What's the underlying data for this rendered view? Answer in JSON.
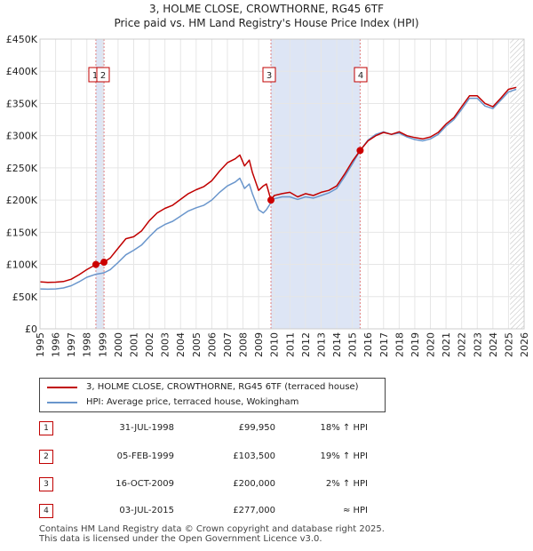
{
  "title_line1": "3, HOLME CLOSE, CROWTHORNE, RG45 6TF",
  "title_line2": "Price paid vs. HM Land Registry's House Price Index (HPI)",
  "colors": {
    "property_line": "#c00000",
    "hpi_line": "#6a96cc",
    "shade": "#dde5f5",
    "grid": "#e6e6e6",
    "marker": "#cc0000",
    "vline": "#e08080",
    "hatch": "#bbbbbb"
  },
  "chart_data": {
    "type": "line",
    "title": "3, HOLME CLOSE, CROWTHORNE, RG45 6TF",
    "subtitle": "Price paid vs. HM Land Registry's House Price Index (HPI)",
    "xlim": [
      1995,
      2026
    ],
    "ylim": [
      0,
      450000
    ],
    "x_ticks": [
      "1995",
      "1996",
      "1997",
      "1998",
      "1999",
      "2000",
      "2001",
      "2002",
      "2003",
      "2004",
      "2005",
      "2006",
      "2007",
      "2008",
      "2009",
      "2010",
      "2011",
      "2012",
      "2013",
      "2014",
      "2015",
      "2016",
      "2017",
      "2018",
      "2019",
      "2020",
      "2021",
      "2022",
      "2023",
      "2024",
      "2025",
      "2026"
    ],
    "y_ticks": [
      {
        "value": 0,
        "label": "£0"
      },
      {
        "value": 50000,
        "label": "£50K"
      },
      {
        "value": 100000,
        "label": "£100K"
      },
      {
        "value": 150000,
        "label": "£150K"
      },
      {
        "value": 200000,
        "label": "£200K"
      },
      {
        "value": 250000,
        "label": "£250K"
      },
      {
        "value": 300000,
        "label": "£300K"
      },
      {
        "value": 350000,
        "label": "£350K"
      },
      {
        "value": 400000,
        "label": "£400K"
      },
      {
        "value": 450000,
        "label": "£450K"
      }
    ],
    "grid": true,
    "shaded_ranges": [
      [
        1998.58,
        1999.1
      ],
      [
        2009.79,
        2015.5
      ]
    ],
    "forecast_from": 2025.1,
    "series": [
      {
        "name": "3, HOLME CLOSE, CROWTHORNE, RG45 6TF (terraced house)",
        "color": "#c00000",
        "points": [
          [
            1995.0,
            73000
          ],
          [
            1995.5,
            72000
          ],
          [
            1996.0,
            72500
          ],
          [
            1996.5,
            73500
          ],
          [
            1997.0,
            77000
          ],
          [
            1997.5,
            84000
          ],
          [
            1998.0,
            92000
          ],
          [
            1998.58,
            99950
          ],
          [
            1999.1,
            103500
          ],
          [
            1999.5,
            110000
          ],
          [
            2000.0,
            125000
          ],
          [
            2000.5,
            140000
          ],
          [
            2001.0,
            143000
          ],
          [
            2001.5,
            152000
          ],
          [
            2002.0,
            168000
          ],
          [
            2002.5,
            180000
          ],
          [
            2003.0,
            187000
          ],
          [
            2003.5,
            192000
          ],
          [
            2004.0,
            201000
          ],
          [
            2004.5,
            210000
          ],
          [
            2005.0,
            216000
          ],
          [
            2005.5,
            221000
          ],
          [
            2006.0,
            230000
          ],
          [
            2006.5,
            245000
          ],
          [
            2007.0,
            258000
          ],
          [
            2007.5,
            264000
          ],
          [
            2007.8,
            270000
          ],
          [
            2008.1,
            253000
          ],
          [
            2008.4,
            262000
          ],
          [
            2008.6,
            243000
          ],
          [
            2009.0,
            215000
          ],
          [
            2009.3,
            222000
          ],
          [
            2009.5,
            225000
          ],
          [
            2009.79,
            200000
          ],
          [
            2010.0,
            207000
          ],
          [
            2010.5,
            210000
          ],
          [
            2011.0,
            212000
          ],
          [
            2011.5,
            205000
          ],
          [
            2012.0,
            210000
          ],
          [
            2012.5,
            207000
          ],
          [
            2013.0,
            212000
          ],
          [
            2013.5,
            215000
          ],
          [
            2014.0,
            222000
          ],
          [
            2014.5,
            240000
          ],
          [
            2015.0,
            260000
          ],
          [
            2015.5,
            277000
          ],
          [
            2016.0,
            292000
          ],
          [
            2016.5,
            300000
          ],
          [
            2017.0,
            305000
          ],
          [
            2017.5,
            302000
          ],
          [
            2018.0,
            306000
          ],
          [
            2018.5,
            300000
          ],
          [
            2019.0,
            297000
          ],
          [
            2019.5,
            295000
          ],
          [
            2020.0,
            298000
          ],
          [
            2020.5,
            305000
          ],
          [
            2021.0,
            318000
          ],
          [
            2021.5,
            328000
          ],
          [
            2022.0,
            345000
          ],
          [
            2022.5,
            362000
          ],
          [
            2023.0,
            362000
          ],
          [
            2023.5,
            350000
          ],
          [
            2024.0,
            345000
          ],
          [
            2024.5,
            358000
          ],
          [
            2025.0,
            372000
          ],
          [
            2025.5,
            375000
          ]
        ]
      },
      {
        "name": "HPI: Average price, terraced house, Wokingham",
        "color": "#6a96cc",
        "points": [
          [
            1995.0,
            62000
          ],
          [
            1995.5,
            61500
          ],
          [
            1996.0,
            62000
          ],
          [
            1996.5,
            63500
          ],
          [
            1997.0,
            67000
          ],
          [
            1997.5,
            73000
          ],
          [
            1998.0,
            80000
          ],
          [
            1998.58,
            84700
          ],
          [
            1999.1,
            87000
          ],
          [
            1999.5,
            92000
          ],
          [
            2000.0,
            103000
          ],
          [
            2000.5,
            115000
          ],
          [
            2001.0,
            122000
          ],
          [
            2001.5,
            130000
          ],
          [
            2002.0,
            143000
          ],
          [
            2002.5,
            155000
          ],
          [
            2003.0,
            162000
          ],
          [
            2003.5,
            167000
          ],
          [
            2004.0,
            175000
          ],
          [
            2004.5,
            183000
          ],
          [
            2005.0,
            188000
          ],
          [
            2005.5,
            192000
          ],
          [
            2006.0,
            200000
          ],
          [
            2006.5,
            212000
          ],
          [
            2007.0,
            222000
          ],
          [
            2007.5,
            228000
          ],
          [
            2007.8,
            234000
          ],
          [
            2008.1,
            218000
          ],
          [
            2008.4,
            225000
          ],
          [
            2008.6,
            210000
          ],
          [
            2009.0,
            185000
          ],
          [
            2009.3,
            180000
          ],
          [
            2009.5,
            185000
          ],
          [
            2009.79,
            196000
          ],
          [
            2010.0,
            202000
          ],
          [
            2010.5,
            205000
          ],
          [
            2011.0,
            205000
          ],
          [
            2011.5,
            201000
          ],
          [
            2012.0,
            205000
          ],
          [
            2012.5,
            203000
          ],
          [
            2013.0,
            207000
          ],
          [
            2013.5,
            211000
          ],
          [
            2014.0,
            218000
          ],
          [
            2014.5,
            236000
          ],
          [
            2015.0,
            256000
          ],
          [
            2015.5,
            277000
          ],
          [
            2016.0,
            293000
          ],
          [
            2016.5,
            302000
          ],
          [
            2017.0,
            306000
          ],
          [
            2017.5,
            302000
          ],
          [
            2018.0,
            304000
          ],
          [
            2018.5,
            298000
          ],
          [
            2019.0,
            294000
          ],
          [
            2019.5,
            292000
          ],
          [
            2020.0,
            295000
          ],
          [
            2020.5,
            302000
          ],
          [
            2021.0,
            315000
          ],
          [
            2021.5,
            325000
          ],
          [
            2022.0,
            341000
          ],
          [
            2022.5,
            358000
          ],
          [
            2023.0,
            358000
          ],
          [
            2023.5,
            346000
          ],
          [
            2024.0,
            342000
          ],
          [
            2024.5,
            355000
          ],
          [
            2025.0,
            368000
          ],
          [
            2025.5,
            372000
          ]
        ]
      }
    ],
    "markers": [
      {
        "label": "1",
        "x": 1998.58,
        "y": 99950
      },
      {
        "label": "2",
        "x": 1999.1,
        "y": 103500
      },
      {
        "label": "3",
        "x": 2009.79,
        "y": 200000
      },
      {
        "label": "4",
        "x": 2015.5,
        "y": 277000
      }
    ]
  },
  "legend": {
    "property": "3, HOLME CLOSE, CROWTHORNE, RG45 6TF (terraced house)",
    "hpi": "HPI: Average price, terraced house, Wokingham"
  },
  "transactions": [
    {
      "num": "1",
      "date": "31-JUL-1998",
      "price": "£99,950",
      "hpi": "18% ↑ HPI"
    },
    {
      "num": "2",
      "date": "05-FEB-1999",
      "price": "£103,500",
      "hpi": "19% ↑ HPI"
    },
    {
      "num": "3",
      "date": "16-OCT-2009",
      "price": "£200,000",
      "hpi": "2% ↑ HPI"
    },
    {
      "num": "4",
      "date": "03-JUL-2015",
      "price": "£277,000",
      "hpi": "≈ HPI"
    }
  ],
  "footer": {
    "line1": "Contains HM Land Registry data © Crown copyright and database right 2025.",
    "line2": "This data is licensed under the Open Government Licence v3.0."
  }
}
